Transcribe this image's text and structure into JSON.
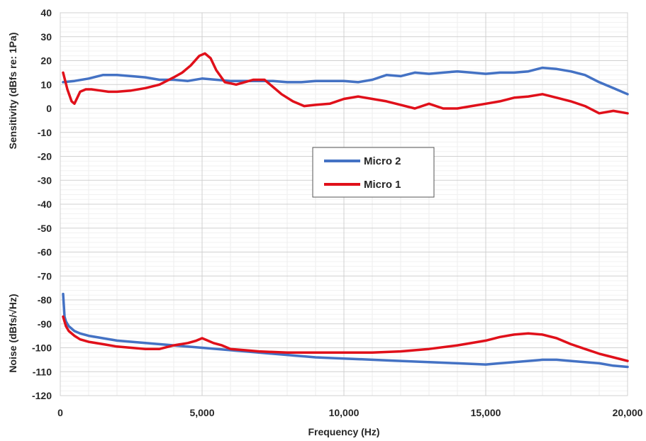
{
  "chart_data": {
    "type": "line",
    "xlabel": "Frequency (Hz)",
    "ylabel_top": "Sensitivity (dBfs re: 1Pa)",
    "ylabel_bottom": "Noise (dBfs/√Hz)",
    "xlim": [
      0,
      20000
    ],
    "ylim": [
      -120,
      40
    ],
    "x_ticks": [
      0,
      5000,
      10000,
      15000,
      20000
    ],
    "x_tick_labels": [
      "0",
      "5,000",
      "10,000",
      "15,000",
      "20,000"
    ],
    "y_ticks": [
      40,
      30,
      20,
      10,
      0,
      -10,
      -20,
      -30,
      -40,
      -50,
      -60,
      -70,
      -80,
      -90,
      -100,
      -110,
      -120
    ],
    "y_tick_labels": [
      "40",
      "30",
      "20",
      "10",
      "0",
      "-10",
      "-20",
      "-30",
      "-40",
      "-50",
      "-60",
      "-70",
      "-80",
      "-90",
      "-100",
      "-110",
      "-120"
    ],
    "grid": true,
    "legend_position": "center",
    "legend": [
      {
        "label": "Micro 2",
        "color": "#4472C4"
      },
      {
        "label": "Micro 1",
        "color": "#E0101A"
      }
    ],
    "series": [
      {
        "legend_label": "Micro 2",
        "group": "sensitivity",
        "color": "#4472C4",
        "x": [
          100,
          500,
          1000,
          1500,
          2000,
          2500,
          3000,
          3500,
          4000,
          4500,
          5000,
          5500,
          6000,
          6500,
          7000,
          7500,
          8000,
          8500,
          9000,
          9500,
          10000,
          10500,
          11000,
          11500,
          12000,
          12500,
          13000,
          13500,
          14000,
          14500,
          15000,
          15500,
          16000,
          16500,
          17000,
          17500,
          18000,
          18500,
          19000,
          19500,
          20000
        ],
        "y": [
          11,
          11.5,
          12.5,
          14,
          14,
          13.5,
          13,
          12,
          12,
          11.5,
          12.5,
          12,
          11.5,
          11.5,
          11.5,
          11.5,
          11,
          11,
          11.5,
          11.5,
          11.5,
          11,
          12,
          14,
          13.5,
          15,
          14.5,
          15,
          15.5,
          15,
          14.5,
          15,
          15,
          15.5,
          17,
          16.5,
          15.5,
          14,
          11,
          8.5,
          6
        ]
      },
      {
        "legend_label": "Micro 1",
        "group": "sensitivity",
        "color": "#E0101A",
        "x": [
          100,
          250,
          400,
          500,
          700,
          900,
          1100,
          1400,
          1700,
          2000,
          2500,
          3000,
          3500,
          4000,
          4300,
          4600,
          4900,
          5100,
          5300,
          5500,
          5800,
          6000,
          6200,
          6500,
          6800,
          7000,
          7200,
          7500,
          7800,
          8200,
          8600,
          9000,
          9500,
          10000,
          10500,
          11000,
          11500,
          12000,
          12500,
          13000,
          13500,
          14000,
          14500,
          15000,
          15500,
          16000,
          16500,
          17000,
          17500,
          18000,
          18500,
          19000,
          19500,
          20000
        ],
        "y": [
          15,
          8,
          3,
          2,
          7,
          8,
          8,
          7.5,
          7,
          7,
          7.5,
          8.5,
          10,
          13,
          15,
          18,
          22,
          23,
          21,
          16,
          11,
          10.5,
          10,
          11,
          12,
          12,
          12,
          9,
          6,
          3,
          1,
          1.5,
          2,
          4,
          5,
          4,
          3,
          1.5,
          0,
          2,
          0,
          0,
          1,
          2,
          3,
          4.5,
          5,
          6,
          4.5,
          3,
          1,
          -2,
          -1,
          -2
        ]
      },
      {
        "legend_label": "Micro 2",
        "group": "noise",
        "color": "#4472C4",
        "x": [
          100,
          150,
          200,
          300,
          400,
          500,
          700,
          1000,
          1500,
          2000,
          3000,
          4000,
          5000,
          6000,
          7000,
          8000,
          9000,
          10000,
          11000,
          12000,
          13000,
          14000,
          15000,
          15500,
          16000,
          16500,
          17000,
          17500,
          18000,
          18500,
          19000,
          19500,
          20000
        ],
        "y": [
          -77.5,
          -87,
          -89,
          -91,
          -92,
          -93,
          -94,
          -95,
          -96,
          -97,
          -98,
          -99,
          -100,
          -101,
          -102,
          -103,
          -104,
          -104.5,
          -105,
          -105.5,
          -106,
          -106.5,
          -107,
          -106.5,
          -106,
          -105.5,
          -105,
          -105,
          -105.5,
          -106,
          -106.5,
          -107.5,
          -108
        ]
      },
      {
        "legend_label": "Micro 1",
        "group": "noise",
        "color": "#E0101A",
        "x": [
          100,
          200,
          300,
          500,
          700,
          1000,
          1500,
          2000,
          2500,
          3000,
          3500,
          4000,
          4500,
          4800,
          5000,
          5200,
          5400,
          5700,
          6000,
          6500,
          7000,
          8000,
          9000,
          10000,
          11000,
          12000,
          13000,
          14000,
          15000,
          15500,
          16000,
          16500,
          17000,
          17500,
          18000,
          18500,
          19000,
          19500,
          20000
        ],
        "y": [
          -87,
          -91,
          -93,
          -95,
          -96.5,
          -97.5,
          -98.5,
          -99.5,
          -100,
          -100.5,
          -100.5,
          -99,
          -98,
          -97,
          -96,
          -97,
          -98,
          -99,
          -100.5,
          -101,
          -101.5,
          -102,
          -102,
          -102,
          -102,
          -101.5,
          -100.5,
          -99,
          -97,
          -95.5,
          -94.5,
          -94,
          -94.5,
          -96,
          -98.5,
          -100.5,
          -102.5,
          -104,
          -105.5
        ]
      }
    ]
  }
}
